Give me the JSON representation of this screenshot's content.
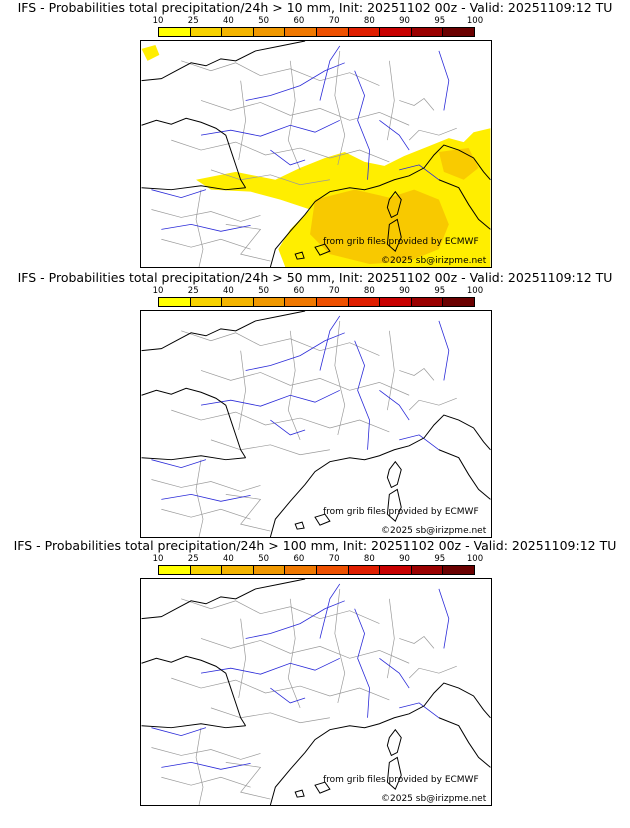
{
  "panels": [
    {
      "title": "IFS - Probabilities total precipitation/24h > 10 mm, Init: 20251102 00z - Valid: 20251109:12 TU",
      "threshold": "10 mm",
      "precip_fill": true
    },
    {
      "title": "IFS - Probabilities total precipitation/24h > 50 mm, Init: 20251102 00z - Valid: 20251109:12 TU",
      "threshold": "50 mm",
      "precip_fill": false
    },
    {
      "title": "IFS - Probabilities total precipitation/24h > 100 mm, Init: 20251102 00z - Valid: 20251109:12 TU",
      "threshold": "100 mm",
      "precip_fill": false
    }
  ],
  "colorbar": {
    "ticks": [
      "10",
      "25",
      "40",
      "50",
      "60",
      "70",
      "80",
      "90",
      "95",
      "100"
    ],
    "colors": [
      "#ffff00",
      "#f7d200",
      "#f3b400",
      "#f09800",
      "#f07800",
      "#ee5000",
      "#e01e00",
      "#c80000",
      "#9a0000",
      "#6a0000"
    ]
  },
  "credits": {
    "source": "from grib files provided by ECMWF",
    "copyright": "©2025 sb@irizpme.net"
  },
  "colors": {
    "coast": "#000000",
    "rivers": "#2a2ad8",
    "borders": "#9a9a9a",
    "precip_light": "#ffee00",
    "precip_mid": "#f7c200"
  }
}
